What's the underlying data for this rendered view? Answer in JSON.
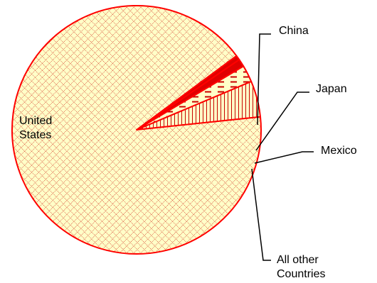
{
  "chart_data": {
    "type": "pie",
    "title": "",
    "slices": [
      {
        "label_lines": [
          "China"
        ],
        "value": 4.7
      },
      {
        "label_lines": [
          "Japan"
        ],
        "value": 2.2
      },
      {
        "label_lines": [
          "Mexico"
        ],
        "value": 1.0
      },
      {
        "label_lines": [
          "All other",
          "Countries"
        ],
        "value": 0.6
      },
      {
        "label_lines": [
          "United",
          "States"
        ],
        "value": 91.5
      }
    ],
    "legend": "none",
    "colors": {
      "outline": "#ff0000",
      "fill": "#ffffc8",
      "hatch": "#c80000"
    }
  }
}
